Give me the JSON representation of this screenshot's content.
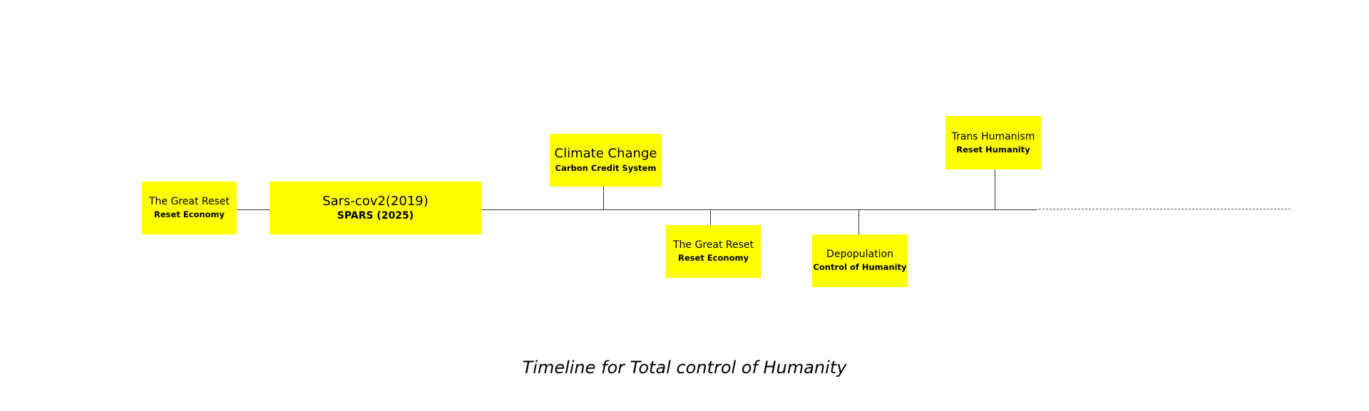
{
  "diagram": {
    "caption": "Timeline for Total control of Humanity",
    "box_color": "#ffff00",
    "events": [
      {
        "title": "The Great Reset",
        "subtitle": "Reset Economy"
      },
      {
        "title": "Sars-cov2(2019)",
        "subtitle": "SPARS (2025)"
      },
      {
        "title": "Climate Change",
        "subtitle": "Carbon Credit System"
      },
      {
        "title": "The Great Reset",
        "subtitle": "Reset Economy"
      },
      {
        "title": "Depopulation",
        "subtitle": "Control of Humanity"
      },
      {
        "title": "Trans Humanism",
        "subtitle": "Reset Humanity"
      }
    ]
  }
}
